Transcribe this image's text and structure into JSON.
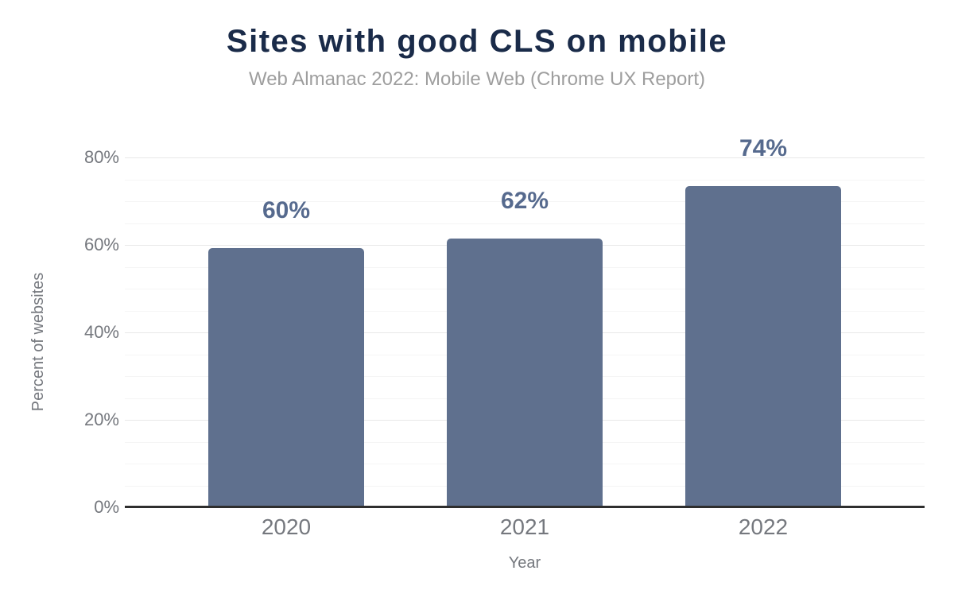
{
  "header": {
    "title": "Sites with good CLS on mobile",
    "subtitle": "Web Almanac 2022: Mobile Web (Chrome UX Report)"
  },
  "chart_data": {
    "type": "bar",
    "title": "Sites with good CLS on mobile",
    "subtitle": "Web Almanac 2022: Mobile Web (Chrome UX Report)",
    "categories": [
      "2020",
      "2021",
      "2022"
    ],
    "values": [
      60,
      62,
      74
    ],
    "value_labels": [
      "60%",
      "62%",
      "74%"
    ],
    "bar_render_heights_pct": [
      59.3,
      61.5,
      73.5
    ],
    "xlabel": "Year",
    "ylabel": "Percent of websites",
    "ylim": [
      0,
      80
    ],
    "y_major_tick_labels": [
      "0%",
      "20%",
      "40%",
      "60%",
      "80%"
    ],
    "y_major_step": 20,
    "y_minor_step": 5,
    "grid": "on",
    "legend": "none",
    "colors": {
      "bar": "#5f708e",
      "value_label": "#566a8e",
      "title": "#1a2b49",
      "subtitle": "#9e9e9e",
      "tick_label": "#75787e",
      "axis_line": "#2e2e2e",
      "grid_major": "#e9e9e9",
      "grid_minor": "#f5f5f5"
    }
  }
}
